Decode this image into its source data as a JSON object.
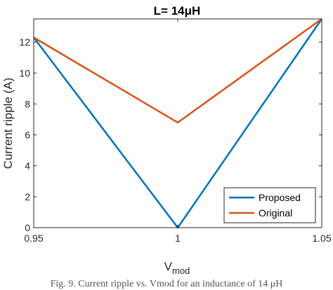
{
  "chart_data": {
    "type": "line",
    "title": "L= 14",
    "title_unit": "μH",
    "xlabel": "V",
    "xlabel_sub": "mod",
    "ylabel": "Current ripple (A)",
    "xlim": [
      0.95,
      1.05
    ],
    "ylim": [
      0,
      13.5
    ],
    "xticks": [
      0.95,
      1,
      1.05
    ],
    "xtick_labels": [
      "0.95",
      "1",
      "1.05"
    ],
    "yticks": [
      0,
      2,
      4,
      6,
      8,
      10,
      12
    ],
    "ytick_labels": [
      "0",
      "2",
      "4",
      "6",
      "8",
      "10",
      "12"
    ],
    "grid": false,
    "legend_position": "bottom-right",
    "series": [
      {
        "name": "Proposed",
        "color": "#0072BD",
        "x": [
          0.95,
          1,
          1.05
        ],
        "y": [
          12.3,
          0,
          13.5
        ]
      },
      {
        "name": "Original",
        "color": "#D95319",
        "x": [
          0.95,
          1,
          1.05
        ],
        "y": [
          12.3,
          6.8,
          13.5
        ]
      }
    ]
  },
  "caption": "Fig. 9. Current ripple vs. Vmod for an inductance of 14 μH"
}
